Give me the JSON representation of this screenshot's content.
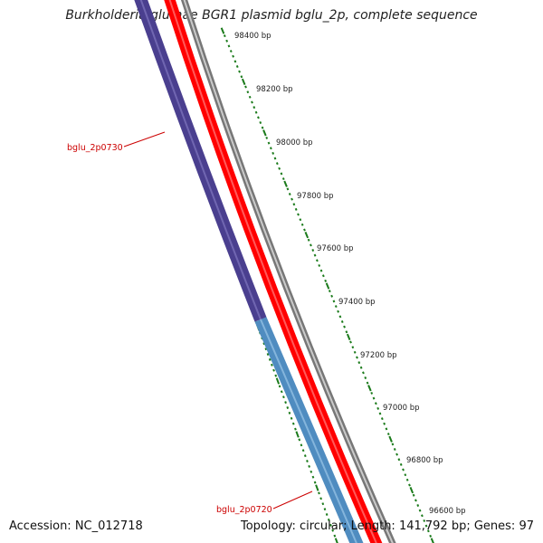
{
  "title": "Burkholderia glumae BGR1 plasmid bglu_2p, complete sequence",
  "footer": {
    "accession": "Accession: NC_012718",
    "summary": "Topology: circular; Length: 141,792 bp; Genes: 97"
  },
  "colors": {
    "backbone": "#777777",
    "backbone_highlight": "#e0e0e0",
    "forward_strand": "#ff0000",
    "gene_a": "#4a3f8f",
    "gene_b": "#4f8cc0",
    "tick": "#1a7a1a",
    "label": "#cc0000",
    "text": "#111111"
  },
  "scale_labels": [
    "98400 bp",
    "98200 bp",
    "98000 bp",
    "97800 bp",
    "97600 bp",
    "97400 bp",
    "97200 bp",
    "97000 bp",
    "96800 bp",
    "96600 bp"
  ],
  "genes": [
    {
      "label": "bglu_2p0730",
      "color_key": "gene_a"
    },
    {
      "label": "bglu_2p0720",
      "color_key": "gene_b"
    }
  ]
}
